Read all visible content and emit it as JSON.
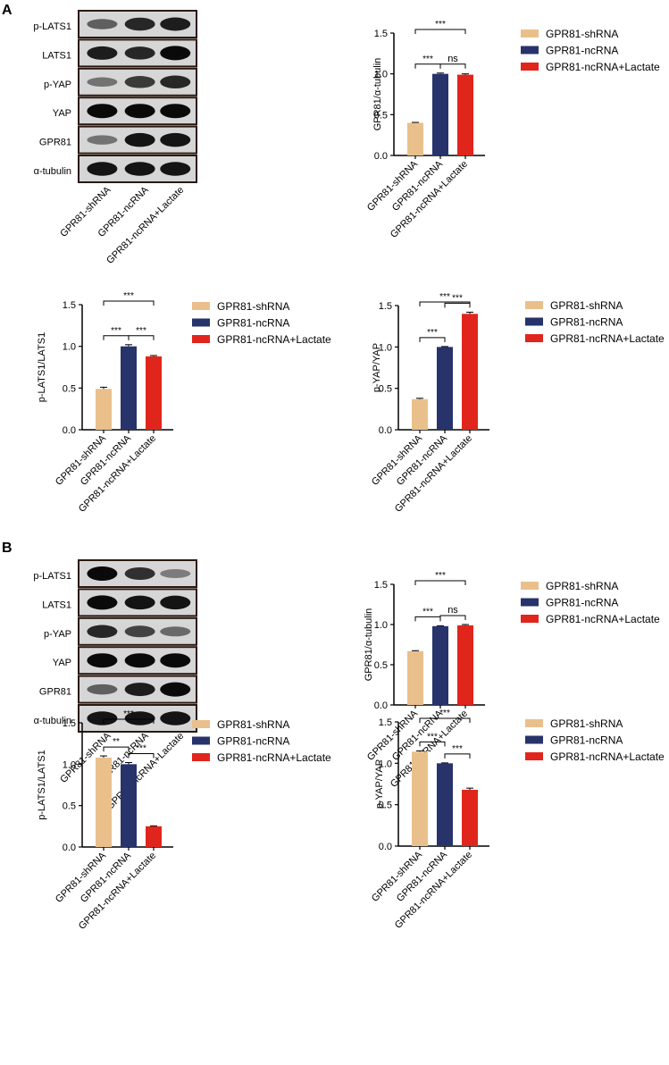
{
  "panels": [
    {
      "label": "A"
    },
    {
      "label": "B"
    }
  ],
  "colors": {
    "shRNA": "#E9C08C",
    "ncRNA": "#27336A",
    "lactate": "#E0261C",
    "axis": "#000000"
  },
  "blots": [
    {
      "lane_labels": [
        "GPR81-shRNA",
        "GPR81-ncRNA",
        "GPR81-ncRNA+Lactate"
      ],
      "rows": [
        {
          "label": "p-LATS1",
          "intensity": [
            0.55,
            0.85,
            0.9
          ]
        },
        {
          "label": "LATS1",
          "intensity": [
            0.9,
            0.85,
            1.0
          ]
        },
        {
          "label": "p-YAP",
          "intensity": [
            0.45,
            0.75,
            0.85
          ]
        },
        {
          "label": "YAP",
          "intensity": [
            1.0,
            1.0,
            1.0
          ]
        },
        {
          "label": "GPR81",
          "intensity": [
            0.45,
            0.95,
            0.95
          ]
        },
        {
          "label": "α-tubulin",
          "intensity": [
            0.95,
            0.95,
            0.95
          ]
        }
      ]
    },
    {
      "lane_labels": [
        "GPR81-shRNA",
        "GPR81-ncRNA",
        "GPR81-ncRNA+Lactate"
      ],
      "rows": [
        {
          "label": "p-LATS1",
          "intensity": [
            1.0,
            0.8,
            0.4
          ]
        },
        {
          "label": "LATS1",
          "intensity": [
            1.0,
            0.95,
            0.95
          ]
        },
        {
          "label": "p-YAP",
          "intensity": [
            0.85,
            0.7,
            0.5
          ]
        },
        {
          "label": "YAP",
          "intensity": [
            1.0,
            1.0,
            1.0
          ]
        },
        {
          "label": "GPR81",
          "intensity": [
            0.55,
            0.9,
            1.0
          ]
        },
        {
          "label": "α-tubulin",
          "intensity": [
            0.95,
            0.95,
            0.95
          ]
        }
      ]
    }
  ],
  "chart_data": [
    {
      "type": "bar",
      "panel": "A",
      "categories": [
        "GPR81-shRNA",
        "GPR81-ncRNA",
        "GPR81-ncRNA+Lactate"
      ],
      "values": [
        0.4,
        1.0,
        0.99
      ],
      "errors": [
        0.005,
        0.01,
        0.01
      ],
      "ylabel": "GPR81/α-tubulin",
      "ylim": [
        0,
        1.5
      ],
      "yticks": [
        "0.0",
        "0.5",
        "1.0",
        "1.5"
      ],
      "legend": [
        "GPR81-shRNA",
        "GPR81-ncRNA",
        "GPR81-ncRNA+Lactate"
      ],
      "significance": [
        {
          "a": 0,
          "b": 1,
          "label": "***"
        },
        {
          "a": 1,
          "b": 2,
          "label": "ns"
        },
        {
          "a": 0,
          "b": 2,
          "label": "***"
        }
      ]
    },
    {
      "type": "bar",
      "panel": "A",
      "categories": [
        "GPR81-shRNA",
        "GPR81-ncRNA",
        "GPR81-ncRNA+Lactate"
      ],
      "values": [
        0.49,
        1.0,
        0.88
      ],
      "errors": [
        0.02,
        0.02,
        0.01
      ],
      "ylabel": "p-LATS1/LATS1",
      "ylim": [
        0,
        1.5
      ],
      "yticks": [
        "0.0",
        "0.5",
        "1.0",
        "1.5"
      ],
      "legend": [
        "GPR81-shRNA",
        "GPR81-ncRNA",
        "GPR81-ncRNA+Lactate"
      ],
      "significance": [
        {
          "a": 0,
          "b": 1,
          "label": "***"
        },
        {
          "a": 1,
          "b": 2,
          "label": "***"
        },
        {
          "a": 0,
          "b": 2,
          "label": "***"
        }
      ]
    },
    {
      "type": "bar",
      "panel": "A",
      "categories": [
        "GPR81-shRNA",
        "GPR81-ncRNA",
        "GPR81-ncRNA+Lactate"
      ],
      "values": [
        0.37,
        1.0,
        1.4
      ],
      "errors": [
        0.01,
        0.005,
        0.02
      ],
      "ylabel": "p-YAP/YAP",
      "ylim": [
        0,
        1.5
      ],
      "yticks": [
        "0.0",
        "0.5",
        "1.0",
        "1.5"
      ],
      "legend": [
        "GPR81-shRNA",
        "GPR81-ncRNA",
        "GPR81-ncRNA+Lactate"
      ],
      "significance": [
        {
          "a": 0,
          "b": 1,
          "label": "***"
        },
        {
          "a": 1,
          "b": 2,
          "label": "***"
        },
        {
          "a": 0,
          "b": 2,
          "label": "***"
        }
      ]
    },
    {
      "type": "bar",
      "panel": "B",
      "categories": [
        "GPR81-shRNA",
        "GPR81-ncRNA",
        "GPR81-ncRNA+Lactate"
      ],
      "values": [
        0.67,
        0.98,
        0.99
      ],
      "errors": [
        0.005,
        0.005,
        0.01
      ],
      "ylabel": "GPR81/α-tubulin",
      "ylim": [
        0,
        1.5
      ],
      "yticks": [
        "0.0",
        "0.5",
        "1.0",
        "1.5"
      ],
      "legend": [
        "GPR81-shRNA",
        "GPR81-ncRNA",
        "GPR81-ncRNA+Lactate"
      ],
      "significance": [
        {
          "a": 0,
          "b": 1,
          "label": "***"
        },
        {
          "a": 1,
          "b": 2,
          "label": "ns"
        },
        {
          "a": 0,
          "b": 2,
          "label": "***"
        }
      ]
    },
    {
      "type": "bar",
      "panel": "B",
      "categories": [
        "GPR81-shRNA",
        "GPR81-ncRNA",
        "GPR81-ncRNA+Lactate"
      ],
      "values": [
        1.08,
        1.0,
        0.25
      ],
      "errors": [
        0.02,
        0.02,
        0.005
      ],
      "ylabel": "p-LATS1/LATS1",
      "ylim": [
        0,
        1.5
      ],
      "yticks": [
        "0.0",
        "0.5",
        "1.0",
        "1.5"
      ],
      "legend": [
        "GPR81-shRNA",
        "GPR81-ncRNA",
        "GPR81-ncRNA+Lactate"
      ],
      "significance": [
        {
          "a": 0,
          "b": 1,
          "label": "**"
        },
        {
          "a": 1,
          "b": 2,
          "label": "***"
        },
        {
          "a": 0,
          "b": 2,
          "label": "***"
        }
      ]
    },
    {
      "type": "bar",
      "panel": "B",
      "categories": [
        "GPR81-shRNA",
        "GPR81-ncRNA",
        "GPR81-ncRNA+Lactate"
      ],
      "values": [
        1.14,
        1.0,
        0.68
      ],
      "errors": [
        0.01,
        0.005,
        0.02
      ],
      "ylabel": "p-YAP/YAP",
      "ylim": [
        0,
        1.5
      ],
      "yticks": [
        "0.0",
        "0.5",
        "1.0",
        "1.5"
      ],
      "legend": [
        "GPR81-shRNA",
        "GPR81-ncRNA",
        "GPR81-ncRNA+Lactate"
      ],
      "significance": [
        {
          "a": 0,
          "b": 1,
          "label": "***"
        },
        {
          "a": 1,
          "b": 2,
          "label": "***"
        },
        {
          "a": 0,
          "b": 2,
          "label": "***"
        }
      ]
    }
  ]
}
